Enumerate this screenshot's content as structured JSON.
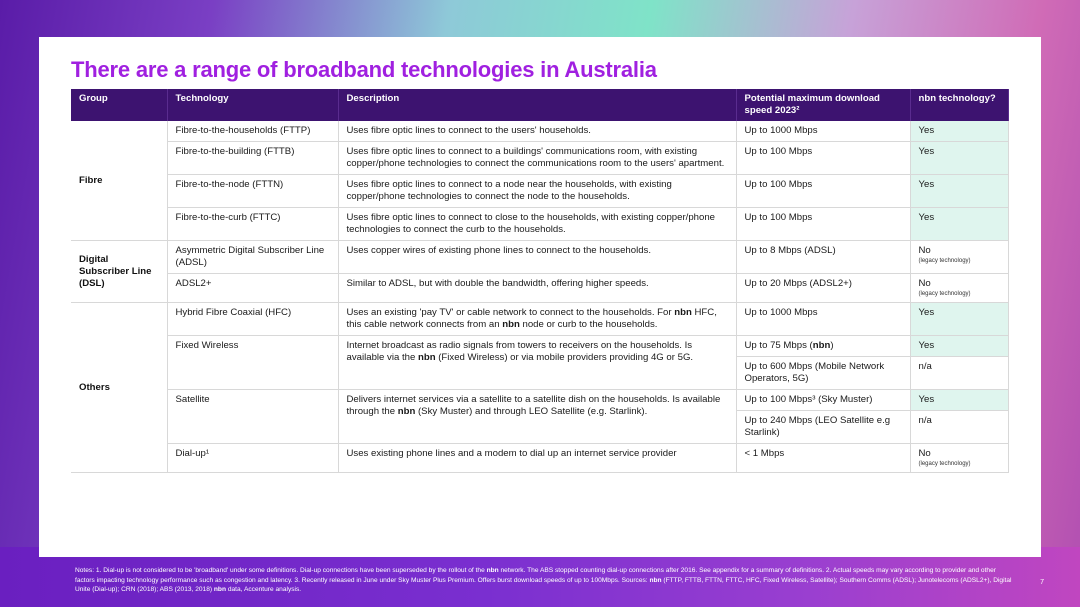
{
  "title": "There are a range of broadband technologies in Australia",
  "table": {
    "headers": {
      "group": "Group",
      "technology": "Technology",
      "description": "Description",
      "speed": "Potential maximum download speed 2023²",
      "nbn": "nbn technology?"
    },
    "groups": {
      "fibre": "Fibre",
      "dsl": "Digital Subscriber Line (DSL)",
      "others": "Others"
    },
    "rows": [
      {
        "tech": "Fibre-to-the-households (FTTP)",
        "desc": "Uses fibre optic lines to connect to the users' households.",
        "speed": "Up to 1000 Mbps",
        "nbn": "Yes"
      },
      {
        "tech": "Fibre-to-the-building (FTTB)",
        "desc": "Uses fibre optic lines to connect to a buildings' communications room, with existing copper/phone technologies to connect the communications room to the users' apartment.",
        "speed": "Up to 100 Mbps",
        "nbn": "Yes"
      },
      {
        "tech": "Fibre-to-the-node (FTTN)",
        "desc": "Uses fibre optic lines to connect to a node near the households, with existing copper/phone technologies to connect the node to the households.",
        "speed": "Up to 100 Mbps",
        "nbn": "Yes"
      },
      {
        "tech": "Fibre-to-the-curb (FTTC)",
        "desc": "Uses fibre optic lines to connect to close to the households, with existing copper/phone technologies to connect the curb to the households.",
        "speed": "Up to 100 Mbps",
        "nbn": "Yes"
      },
      {
        "tech": "Asymmetric Digital Subscriber Line (ADSL)",
        "desc": "Uses copper wires of existing phone lines to connect to the households.",
        "speed": "Up to 8 Mbps (ADSL)",
        "nbn": "No",
        "nbn_note": "(legacy technology)"
      },
      {
        "tech": "ADSL2+",
        "desc": "Similar to ADSL, but with double the bandwidth, offering higher speeds.",
        "speed": "Up to 20 Mbps (ADSL2+)",
        "nbn": "No",
        "nbn_note": "(legacy technology)"
      },
      {
        "tech": "Hybrid Fibre Coaxial (HFC)",
        "desc_a": "Uses an existing 'pay TV' or cable network to connect to the households. For ",
        "desc_b": " HFC, this cable network connects from an ",
        "desc_c": " node or curb to the households.",
        "speed": "Up to 1000 Mbps",
        "nbn": "Yes"
      },
      {
        "tech": "Fixed Wireless",
        "desc_a": "Internet broadcast as radio signals from towers to receivers on the households. Is available via the ",
        "desc_b": " (Fixed Wireless) or via mobile providers providing 4G or 5G.",
        "speed_a": "Up to 75 Mbps (",
        "speed_b": ")",
        "nbn": "Yes",
        "speed2": "Up to 600 Mbps (Mobile Network Operators, 5G)",
        "nbn2": "n/a"
      },
      {
        "tech": "Satellite",
        "desc_a": "Delivers internet services via a satellite to a satellite dish on the households. Is available through the ",
        "desc_b": " (Sky Muster) and through LEO Satellite (e.g. Starlink).",
        "speed": "Up to 100 Mbps³ (Sky Muster)",
        "nbn": "Yes",
        "speed2": "Up to 240 Mbps (LEO Satellite e.g Starlink)",
        "nbn2": "n/a"
      },
      {
        "tech": "Dial-up¹",
        "desc": "Uses existing phone lines and a modem to dial up an internet service provider",
        "speed": "< 1 Mbps",
        "nbn": "No",
        "nbn_note": "(legacy technology)"
      }
    ],
    "nbn_word": "nbn"
  },
  "notes": {
    "a": "Notes: 1. Dial-up is not considered to be 'broadband' under some definitions. Dial-up connections have been superseded by the rollout of the ",
    "b": " network. The ABS stopped counting dial-up connections after 2016. See appendix for a summary of definitions. 2. Actual speeds may vary according to provider and other factors impacting technology performance such as congestion and latency. 3. Recently released in June under Sky Muster Plus Premium. Offers burst download speeds of up to 100Mbps. Sources: ",
    "c": " (FTTP, FTTB, FTTN, FTTC, HFC, Fixed Wireless, Satellite); Southern Comms (ADSL); Junotelecoms (ADSL2+), Digital Unite (Dial-up); CRN (2018); ABS (2013, 2018) ",
    "d": " data, Accenture analysis."
  },
  "page_number": "7",
  "colors": {
    "title": "#a020e0",
    "header_bg": "#3d1370",
    "yes_bg": "#dff5ee"
  }
}
